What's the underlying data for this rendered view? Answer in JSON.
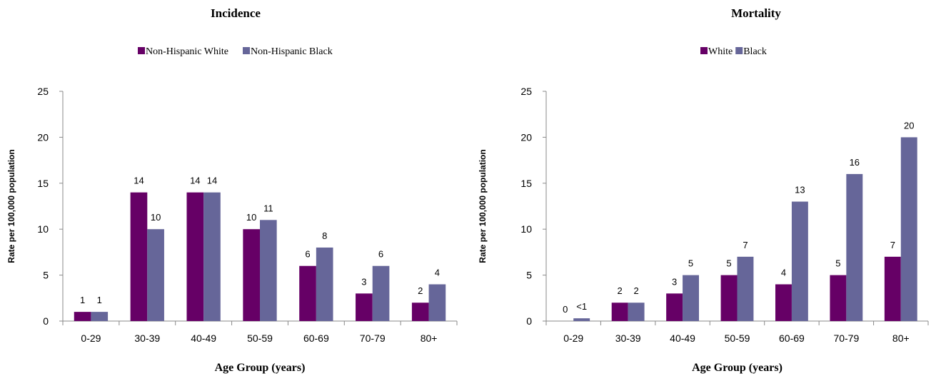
{
  "colors": {
    "white": "#660066",
    "black": "#666699"
  },
  "chart_data": [
    {
      "type": "bar",
      "title": "Incidence",
      "xlabel": "Age Group (years)",
      "ylabel": "Rate per 100,000 population",
      "ylim": [
        0,
        25
      ],
      "yticks": [
        0,
        5,
        10,
        15,
        20,
        25
      ],
      "ytick_labels": [
        "0",
        "5",
        "10",
        "15",
        "20",
        "25"
      ],
      "categories": [
        "0-29",
        "30-39",
        "40-49",
        "50-59",
        "60-69",
        "70-79",
        "80+"
      ],
      "legend_position": "top",
      "series": [
        {
          "name": "Non-Hispanic White",
          "values": [
            1,
            14,
            14,
            10,
            6,
            3,
            2
          ],
          "labels": [
            "1",
            "14",
            "14",
            "10",
            "6",
            "3",
            "2"
          ]
        },
        {
          "name": "Non-Hispanic Black",
          "values": [
            1,
            10,
            14,
            11,
            8,
            6,
            4
          ],
          "labels": [
            "1",
            "10",
            "14",
            "11",
            "8",
            "6",
            "4"
          ]
        }
      ]
    },
    {
      "type": "bar",
      "title": "Mortality",
      "xlabel": "Age Group (years)",
      "ylabel": "Rate per 100,000 population",
      "ylim": [
        0,
        25
      ],
      "yticks": [
        0,
        5,
        10,
        15,
        20,
        25
      ],
      "ytick_labels": [
        "0",
        "5",
        "10",
        "15",
        "20",
        "25"
      ],
      "categories": [
        "0-29",
        "30-39",
        "40-49",
        "50-59",
        "60-69",
        "70-79",
        "80+"
      ],
      "legend_position": "top",
      "series": [
        {
          "name": "White",
          "values": [
            0,
            2,
            3,
            5,
            4,
            5,
            7
          ],
          "labels": [
            "0",
            "2",
            "3",
            "5",
            "4",
            "5",
            "7"
          ]
        },
        {
          "name": "Black",
          "values": [
            0.3,
            2,
            5,
            7,
            13,
            16,
            20
          ],
          "labels": [
            "<1",
            "2",
            "5",
            "7",
            "13",
            "16",
            "20"
          ]
        }
      ]
    }
  ]
}
